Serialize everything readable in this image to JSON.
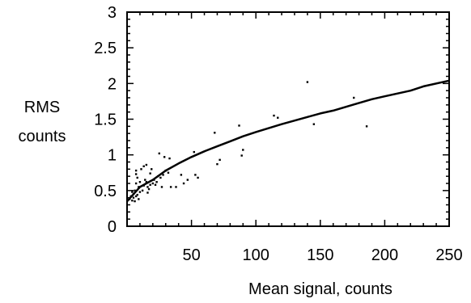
{
  "chart_data": {
    "type": "scatter",
    "xlabel": "Mean signal, counts",
    "ylabel_lines": [
      "RMS",
      "counts"
    ],
    "xlim": [
      0,
      250
    ],
    "ylim": [
      0,
      3
    ],
    "grid": false,
    "x_ticks": [
      {
        "value": 50,
        "label": "50"
      },
      {
        "value": 100,
        "label": "100"
      },
      {
        "value": 150,
        "label": "150"
      },
      {
        "value": 200,
        "label": "200"
      },
      {
        "value": 250,
        "label": "250"
      }
    ],
    "y_ticks": [
      {
        "value": 0,
        "label": "0"
      },
      {
        "value": 0.5,
        "label": "0.5"
      },
      {
        "value": 1,
        "label": "1"
      },
      {
        "value": 1.5,
        "label": "1.5"
      },
      {
        "value": 2,
        "label": "2"
      },
      {
        "value": 2.5,
        "label": "2.5"
      },
      {
        "value": 3,
        "label": "3"
      }
    ],
    "series": [
      {
        "kind": "scatter",
        "color": "#000000",
        "points": [
          [
            2,
            0.38
          ],
          [
            3,
            0.42
          ],
          [
            4,
            0.36
          ],
          [
            4,
            0.48
          ],
          [
            5,
            0.4
          ],
          [
            5,
            0.45
          ],
          [
            6,
            0.35
          ],
          [
            6,
            0.5
          ],
          [
            7,
            0.42
          ],
          [
            7,
            0.6
          ],
          [
            7,
            0.73
          ],
          [
            7,
            0.78
          ],
          [
            8,
            0.44
          ],
          [
            8,
            0.68
          ],
          [
            9,
            0.38
          ],
          [
            9,
            0.55
          ],
          [
            10,
            0.48
          ],
          [
            10,
            0.62
          ],
          [
            11,
            0.8
          ],
          [
            12,
            0.5
          ],
          [
            13,
            0.57
          ],
          [
            13,
            0.84
          ],
          [
            14,
            0.65
          ],
          [
            15,
            0.62
          ],
          [
            15,
            0.86
          ],
          [
            16,
            0.47
          ],
          [
            16,
            0.55
          ],
          [
            17,
            0.52
          ],
          [
            18,
            0.58
          ],
          [
            18,
            0.74
          ],
          [
            19,
            0.8
          ],
          [
            20,
            0.6
          ],
          [
            21,
            0.65
          ],
          [
            22,
            0.58
          ],
          [
            23,
            0.62
          ],
          [
            24,
            0.7
          ],
          [
            25,
            1.02
          ],
          [
            26,
            0.68
          ],
          [
            27,
            0.55
          ],
          [
            28,
            0.72
          ],
          [
            29,
            0.97
          ],
          [
            30,
            0.78
          ],
          [
            32,
            0.75
          ],
          [
            33,
            0.95
          ],
          [
            34,
            0.55
          ],
          [
            38,
            0.55
          ],
          [
            42,
            0.72
          ],
          [
            44,
            0.6
          ],
          [
            47,
            0.65
          ],
          [
            52,
            1.04
          ],
          [
            53,
            0.72
          ],
          [
            55,
            0.68
          ],
          [
            68,
            1.31
          ],
          [
            70,
            0.87
          ],
          [
            72,
            0.93
          ],
          [
            87,
            1.41
          ],
          [
            89,
            0.99
          ],
          [
            90,
            1.07
          ],
          [
            114,
            1.55
          ],
          [
            117,
            1.52
          ],
          [
            140,
            2.02
          ],
          [
            145,
            1.43
          ],
          [
            176,
            1.8
          ],
          [
            186,
            1.4
          ]
        ]
      },
      {
        "kind": "line",
        "color": "#000000",
        "points": [
          [
            0,
            0.35
          ],
          [
            5,
            0.45
          ],
          [
            10,
            0.55
          ],
          [
            20,
            0.65
          ],
          [
            30,
            0.78
          ],
          [
            40,
            0.88
          ],
          [
            50,
            0.97
          ],
          [
            60,
            1.05
          ],
          [
            70,
            1.12
          ],
          [
            80,
            1.19
          ],
          [
            90,
            1.26
          ],
          [
            100,
            1.32
          ],
          [
            120,
            1.43
          ],
          [
            140,
            1.53
          ],
          [
            150,
            1.58
          ],
          [
            160,
            1.62
          ],
          [
            175,
            1.7
          ],
          [
            190,
            1.78
          ],
          [
            200,
            1.82
          ],
          [
            220,
            1.9
          ],
          [
            230,
            1.96
          ],
          [
            250,
            2.04
          ]
        ]
      }
    ]
  }
}
